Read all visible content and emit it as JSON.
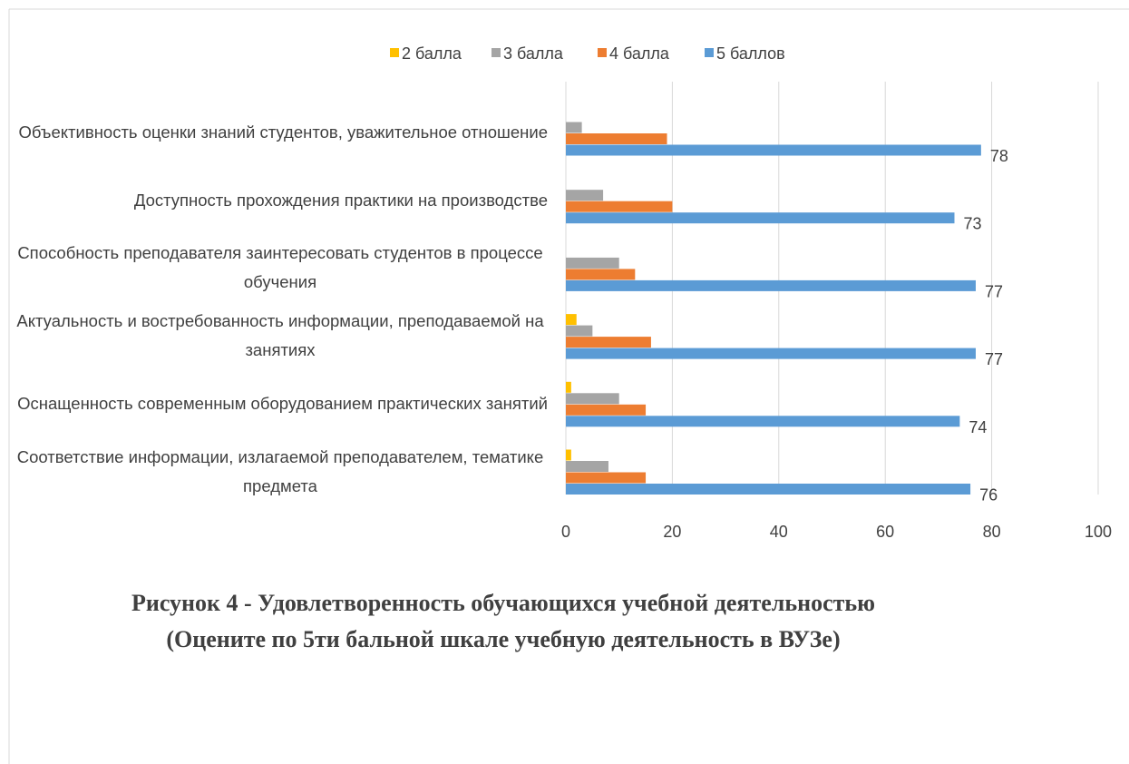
{
  "chart_data": {
    "type": "barh",
    "categories": [
      "Объективность оценки знаний студентов, уважительное отношение",
      "Доступность прохождения практики на производстве",
      "Способность преподавателя заинтересовать студентов в процессе обучения",
      "Актуальность и востребованность информации, преподаваемой на занятиях",
      "Оснащенность современным оборудованием практических занятий",
      "Соответствие информации, излагаемой преподавателем, тематике предмета"
    ],
    "series": [
      {
        "name": "2 балла",
        "color": "#ffc000",
        "values": [
          0,
          0,
          0,
          2,
          1,
          1
        ]
      },
      {
        "name": "3 балла",
        "color": "#a5a5a5",
        "values": [
          3,
          7,
          10,
          5,
          10,
          8
        ]
      },
      {
        "name": "4 балла",
        "color": "#ed7d31",
        "values": [
          19,
          20,
          13,
          16,
          15,
          15
        ]
      },
      {
        "name": "5 баллов",
        "color": "#5b9bd5",
        "values": [
          78,
          73,
          77,
          77,
          74,
          76
        ],
        "show_labels": true
      }
    ],
    "xlim": [
      0,
      100
    ],
    "xticks": [
      0,
      20,
      40,
      60,
      80,
      100
    ],
    "grid": true,
    "legend": "top",
    "caption": "Рисунок 4 - Удовлетворенность обучающихся учебной деятельностью (Оцените по 5ти бальной шкале учебную деятельность в ВУЗе)"
  }
}
